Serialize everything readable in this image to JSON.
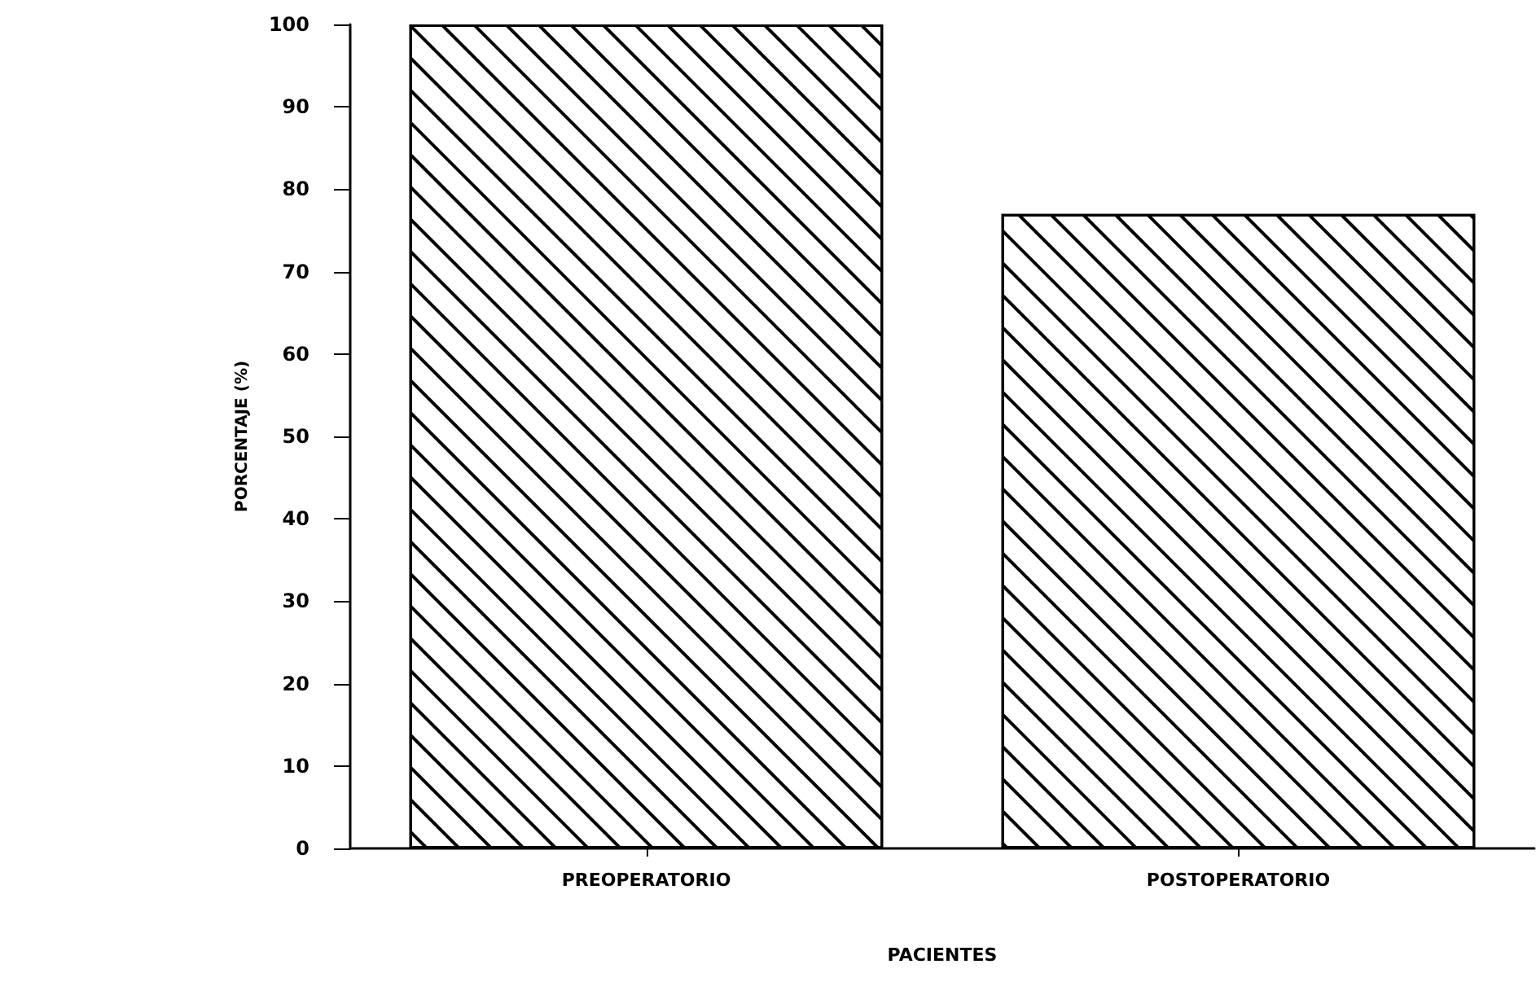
{
  "chart_data": {
    "type": "bar",
    "categories": [
      "PREOPERATORIO",
      "POSTOPERATORIO"
    ],
    "values": [
      100,
      77
    ],
    "color": "#ffffff",
    "xlabel": "PACIENTES",
    "ylabel": "PORCENTAJE (%)",
    "ylim": [
      0,
      100
    ],
    "yticks": [
      0,
      10,
      20,
      30,
      40,
      50,
      60,
      70,
      80,
      90,
      100
    ],
    "grid": false
  }
}
